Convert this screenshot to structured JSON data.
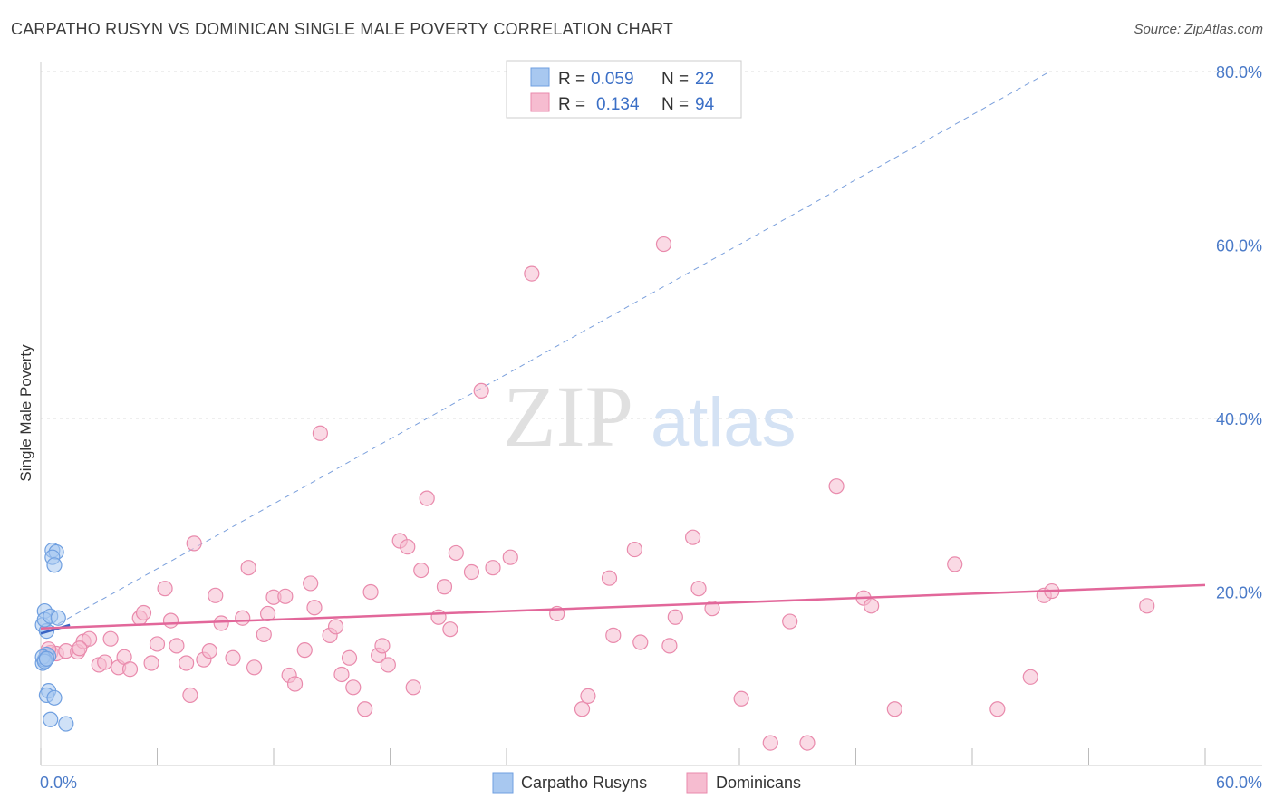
{
  "title": "CARPATHO RUSYN VS DOMINICAN SINGLE MALE POVERTY CORRELATION CHART",
  "source": "Source: ZipAtlas.com",
  "watermark": {
    "zip": "ZIP",
    "atlas": "atlas"
  },
  "colors": {
    "blue_fill": "#a8c8f0",
    "blue_stroke": "#6f9fe0",
    "blue_line": "#3a64c4",
    "pink_fill": "#f6bcd0",
    "pink_stroke": "#e98aac",
    "pink_line": "#e2679a",
    "grid": "#dddddd",
    "tick_label": "#4a7ac8"
  },
  "legend": {
    "rows": [
      {
        "r_label": "R =",
        "r_value": "0.059",
        "n_label": "N =",
        "n_value": "22"
      },
      {
        "r_label": "R =",
        "r_value": "0.134",
        "n_label": "N =",
        "n_value": "94"
      }
    ]
  },
  "chart_data": {
    "type": "scatter",
    "title": "CARPATHO RUSYN VS DOMINICAN SINGLE MALE POVERTY CORRELATION CHART",
    "xlabel": "",
    "ylabel": "Single Male Poverty",
    "xlim": [
      0,
      60
    ],
    "ylim": [
      0,
      80
    ],
    "x_tick_labels": [
      "0.0%",
      "60.0%"
    ],
    "y_ticks": [
      20,
      40,
      60,
      80
    ],
    "y_tick_labels": [
      "20.0%",
      "40.0%",
      "60.0%",
      "80.0%"
    ],
    "grid": true,
    "legend_position": "top-center",
    "series": [
      {
        "name": "Carpatho Rusyns",
        "r": 0.059,
        "n": 22,
        "points": [
          [
            0.2,
            17.8
          ],
          [
            0.1,
            16.2
          ],
          [
            0.3,
            15.5
          ],
          [
            0.2,
            16.8
          ],
          [
            0.5,
            17.2
          ],
          [
            0.9,
            17.0
          ],
          [
            0.6,
            24.8
          ],
          [
            0.8,
            24.6
          ],
          [
            0.6,
            24.0
          ],
          [
            0.7,
            23.1
          ],
          [
            0.3,
            12.8
          ],
          [
            0.4,
            12.6
          ],
          [
            0.1,
            11.8
          ],
          [
            0.2,
            12.2
          ],
          [
            0.1,
            12.5
          ],
          [
            0.4,
            8.6
          ],
          [
            0.3,
            8.1
          ],
          [
            0.7,
            7.8
          ],
          [
            0.5,
            5.3
          ],
          [
            1.3,
            4.8
          ],
          [
            0.2,
            12.0
          ],
          [
            0.3,
            12.3
          ]
        ],
        "trend": [
          [
            0,
            15.2
          ],
          [
            1.5,
            16.2
          ]
        ]
      },
      {
        "name": "Dominicans",
        "r": 0.134,
        "n": 94,
        "points": [
          [
            0.3,
            12.6
          ],
          [
            0.5,
            13.0
          ],
          [
            0.8,
            12.9
          ],
          [
            1.3,
            13.2
          ],
          [
            1.9,
            13.1
          ],
          [
            2.2,
            14.3
          ],
          [
            2.5,
            14.6
          ],
          [
            3.0,
            11.6
          ],
          [
            3.3,
            11.9
          ],
          [
            3.6,
            14.6
          ],
          [
            4.0,
            11.3
          ],
          [
            4.3,
            12.5
          ],
          [
            4.6,
            11.1
          ],
          [
            5.1,
            17.0
          ],
          [
            5.3,
            17.6
          ],
          [
            5.7,
            11.8
          ],
          [
            6.0,
            14.0
          ],
          [
            6.4,
            20.4
          ],
          [
            6.7,
            16.7
          ],
          [
            7.0,
            13.8
          ],
          [
            7.5,
            11.8
          ],
          [
            7.7,
            8.1
          ],
          [
            7.9,
            25.6
          ],
          [
            8.4,
            12.2
          ],
          [
            8.7,
            13.2
          ],
          [
            9.0,
            19.6
          ],
          [
            9.3,
            16.4
          ],
          [
            9.9,
            12.4
          ],
          [
            10.4,
            17.0
          ],
          [
            10.7,
            22.8
          ],
          [
            11.0,
            11.3
          ],
          [
            11.5,
            15.1
          ],
          [
            11.7,
            17.5
          ],
          [
            12.0,
            19.4
          ],
          [
            12.6,
            19.5
          ],
          [
            12.8,
            10.4
          ],
          [
            13.1,
            9.4
          ],
          [
            13.6,
            13.3
          ],
          [
            13.9,
            21.0
          ],
          [
            14.1,
            18.2
          ],
          [
            14.4,
            38.3
          ],
          [
            14.9,
            15.0
          ],
          [
            15.2,
            16.0
          ],
          [
            15.5,
            10.5
          ],
          [
            15.9,
            12.4
          ],
          [
            16.1,
            9.0
          ],
          [
            16.7,
            6.5
          ],
          [
            17.0,
            20.0
          ],
          [
            17.4,
            12.7
          ],
          [
            17.6,
            13.8
          ],
          [
            17.9,
            11.6
          ],
          [
            18.5,
            25.9
          ],
          [
            18.9,
            25.2
          ],
          [
            19.2,
            9.0
          ],
          [
            19.6,
            22.5
          ],
          [
            19.9,
            30.8
          ],
          [
            20.5,
            17.1
          ],
          [
            20.8,
            20.6
          ],
          [
            21.1,
            15.7
          ],
          [
            21.4,
            24.5
          ],
          [
            22.2,
            22.3
          ],
          [
            22.7,
            43.2
          ],
          [
            23.3,
            22.8
          ],
          [
            24.2,
            24.0
          ],
          [
            25.3,
            56.7
          ],
          [
            26.6,
            17.5
          ],
          [
            27.9,
            6.5
          ],
          [
            28.2,
            8.0
          ],
          [
            29.3,
            21.6
          ],
          [
            29.5,
            15.0
          ],
          [
            30.6,
            24.9
          ],
          [
            30.9,
            14.2
          ],
          [
            32.1,
            60.1
          ],
          [
            32.4,
            13.8
          ],
          [
            32.7,
            17.1
          ],
          [
            33.6,
            26.3
          ],
          [
            33.9,
            20.4
          ],
          [
            34.6,
            18.1
          ],
          [
            36.1,
            7.7
          ],
          [
            37.6,
            2.6
          ],
          [
            38.6,
            16.6
          ],
          [
            39.5,
            2.6
          ],
          [
            41.0,
            32.2
          ],
          [
            42.4,
            19.3
          ],
          [
            42.8,
            18.4
          ],
          [
            44.0,
            6.5
          ],
          [
            47.1,
            23.2
          ],
          [
            49.3,
            6.5
          ],
          [
            51.0,
            10.2
          ],
          [
            51.7,
            19.6
          ],
          [
            52.1,
            20.1
          ],
          [
            57.0,
            18.4
          ],
          [
            0.4,
            13.4
          ],
          [
            2.0,
            13.5
          ]
        ],
        "trend": [
          [
            0,
            15.8
          ],
          [
            60,
            20.8
          ]
        ]
      }
    ],
    "reference_line": {
      "style": "dashed",
      "points": [
        [
          0,
          15.2
        ],
        [
          52,
          80
        ]
      ]
    }
  }
}
